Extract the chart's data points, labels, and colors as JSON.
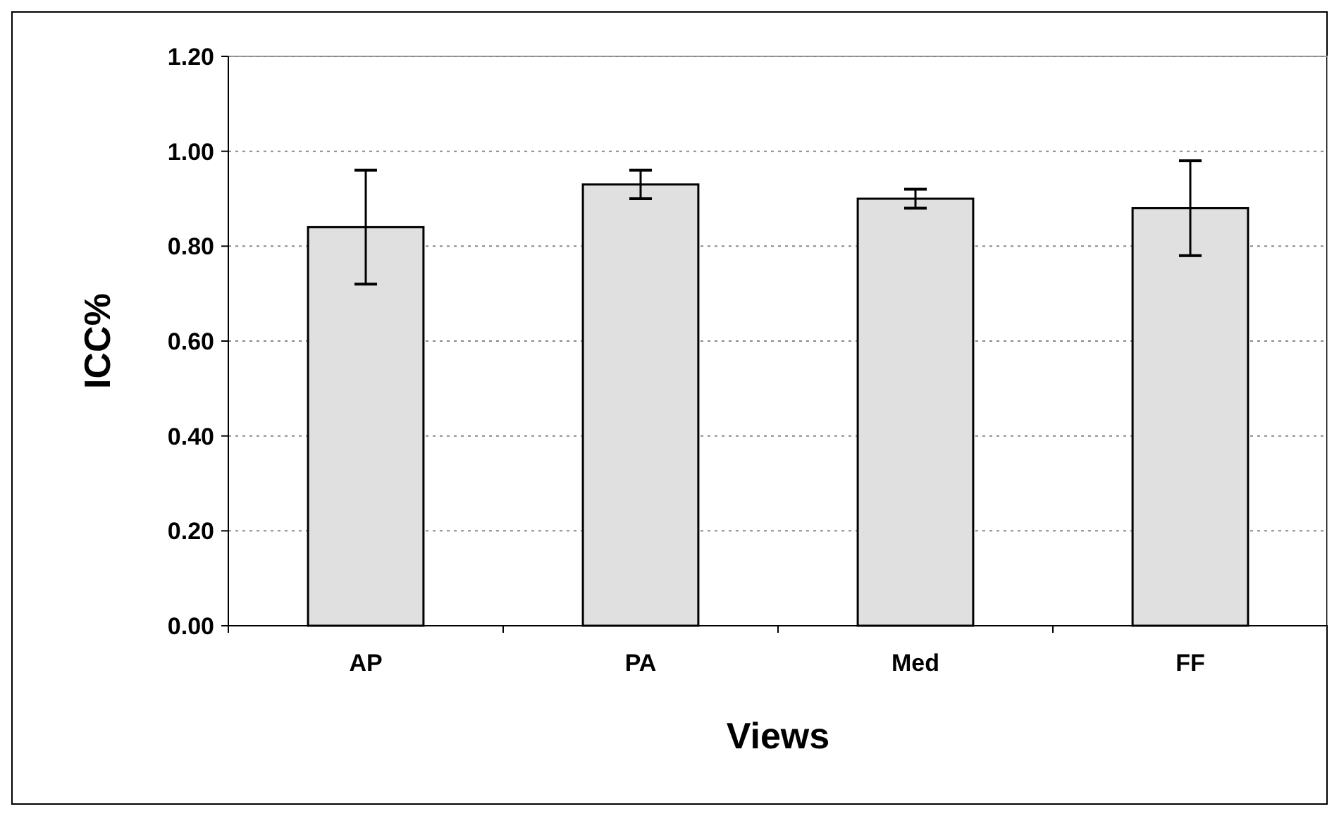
{
  "chart_data": {
    "type": "bar",
    "xlabel": "Views",
    "ylabel": "ICC%",
    "categories": [
      "AP",
      "PA",
      "Med",
      "FF"
    ],
    "values": [
      0.84,
      0.93,
      0.9,
      0.88
    ],
    "errors": [
      0.12,
      0.03,
      0.02,
      0.1
    ],
    "color": "#e0e0e0",
    "ylim": [
      0,
      1.2
    ],
    "yticks": [
      {
        "value": 0,
        "label": "0.00"
      },
      {
        "value": 0.2,
        "label": "0.20"
      },
      {
        "value": 0.4,
        "label": "0.40"
      },
      {
        "value": 0.6,
        "label": "0.60"
      },
      {
        "value": 0.8,
        "label": "0.80"
      },
      {
        "value": 1,
        "label": "1.00"
      },
      {
        "value": 1.2,
        "label": "1.20"
      }
    ],
    "grid": "y"
  }
}
